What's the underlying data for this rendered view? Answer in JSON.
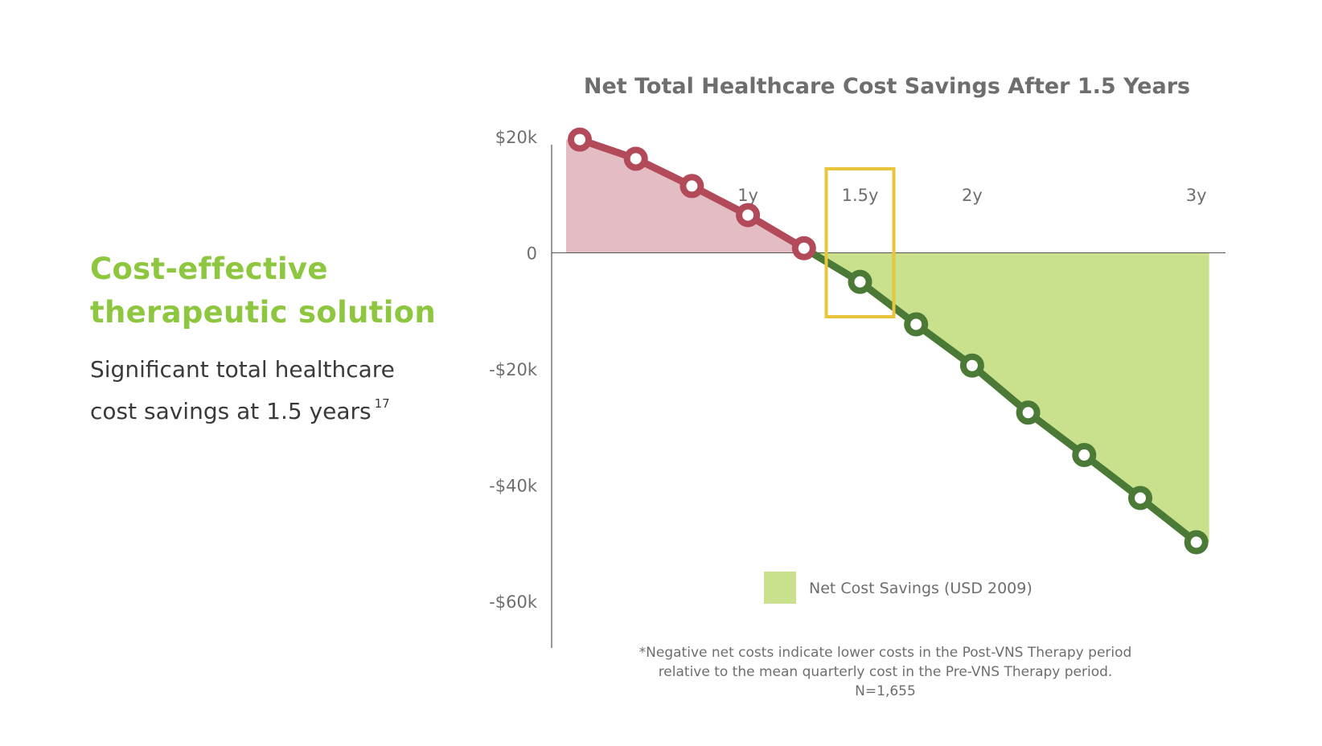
{
  "left_panel": {
    "headline_line1": "Cost-effective",
    "headline_line2": "therapeutic solution",
    "headline_color": "#8dc63f",
    "subtext_line1": "Significant total healthcare",
    "subtext_line2": "cost savings at 1.5 years",
    "superscript": "17"
  },
  "chart_data": {
    "type": "area",
    "title": "Net Total Healthcare Cost Savings After 1.5 Years",
    "xlabel": "",
    "ylabel": "",
    "x_unit": "quarter",
    "x": [
      1,
      2,
      3,
      4,
      5,
      6,
      7,
      8,
      9,
      10,
      11,
      12
    ],
    "values": [
      19500,
      16200,
      11500,
      6500,
      800,
      -5000,
      -12300,
      -19400,
      -27500,
      -34800,
      -42200,
      -49800
    ],
    "series": [
      {
        "name": "Net Cost Savings (USD 2009)",
        "values": [
          19500,
          16200,
          11500,
          6500,
          800,
          -5000,
          -12300,
          -19400,
          -27500,
          -34800,
          -42200,
          -49800
        ]
      }
    ],
    "ylim": [
      -68000,
      20000
    ],
    "yticks": [
      {
        "value": 20000,
        "label": "$20k"
      },
      {
        "value": 0,
        "label": "0"
      },
      {
        "value": -20000,
        "label": "-$20k"
      },
      {
        "value": -40000,
        "label": "-$40k"
      },
      {
        "value": -60000,
        "label": "-$60k"
      }
    ],
    "xticks": [
      {
        "x": 4,
        "label": "1y"
      },
      {
        "x": 6,
        "label": "1.5y"
      },
      {
        "x": 8,
        "label": "2y"
      },
      {
        "x": 12,
        "label": "3y"
      }
    ],
    "highlight_x": 6,
    "legend": {
      "label": "Net Cost Savings (USD 2009)",
      "placement": "bottom-center"
    },
    "footnote": [
      "*Negative net costs indicate lower costs in the Post-VNS Therapy period",
      "relative to the mean quarterly cost in the Pre-VNS Therapy period.",
      "N=1,655"
    ],
    "colors": {
      "positive_line": "#b24a5a",
      "positive_fill": "#e3bcc4",
      "negative_line": "#4a7a35",
      "negative_fill": "#c9e08c",
      "highlight": "#e8c53a",
      "axis": "#555555",
      "text": "#6e6e6e"
    },
    "grid": false
  }
}
